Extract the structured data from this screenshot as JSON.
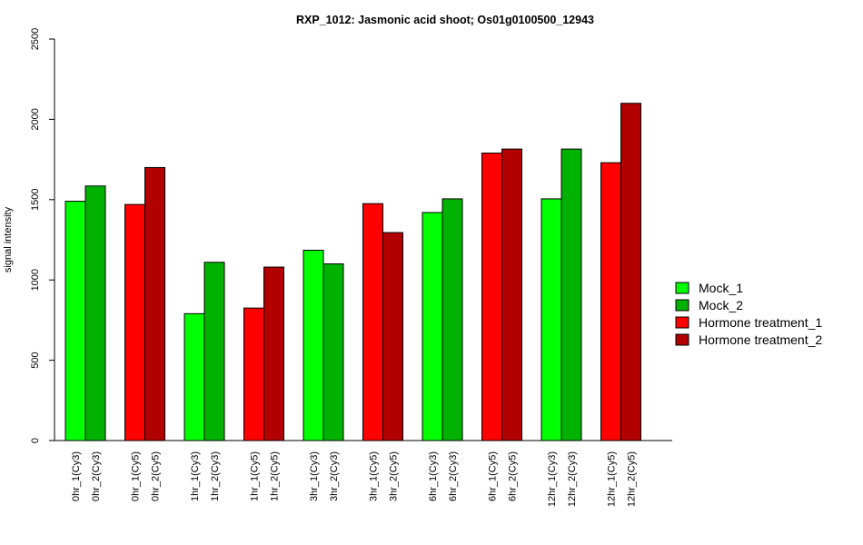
{
  "chart_data": {
    "type": "bar",
    "title": "RXP_1012: Jasmonic acid shoot; Os01g0100500_12943",
    "xlabel": "",
    "ylabel": "signal intensity",
    "ylim": [
      0,
      2500
    ],
    "yticks": [
      0,
      500,
      1000,
      1500,
      2000,
      2500
    ],
    "grid": false,
    "legend_position": "right",
    "groups": [
      "0hr_Cy3",
      "0hr_Cy5",
      "1hr_Cy3",
      "1hr_Cy5",
      "3hr_Cy3",
      "3hr_Cy5",
      "6hr_Cy3",
      "6hr_Cy5",
      "12hr_Cy3",
      "12hr_Cy5"
    ],
    "categories": [
      "0hr_1(Cy3)",
      "0hr_2(Cy3)",
      "0hr_1(Cy5)",
      "0hr_2(Cy5)",
      "1hr_1(Cy3)",
      "1hr_2(Cy3)",
      "1hr_1(Cy5)",
      "1hr_2(Cy5)",
      "3hr_1(Cy3)",
      "3hr_2(Cy3)",
      "3hr_1(Cy5)",
      "3hr_2(Cy5)",
      "6hr_1(Cy3)",
      "6hr_2(Cy3)",
      "6hr_1(Cy5)",
      "6hr_2(Cy5)",
      "12hr_1(Cy3)",
      "12hr_2(Cy3)",
      "12hr_1(Cy5)",
      "12hr_2(Cy5)"
    ],
    "values": [
      1490,
      1585,
      1470,
      1700,
      790,
      1110,
      825,
      1080,
      1185,
      1100,
      1475,
      1295,
      1420,
      1505,
      1790,
      1815,
      1505,
      1815,
      1730,
      2100
    ],
    "bar_series": [
      "Mock_1",
      "Mock_2",
      "Hormone treatment_1",
      "Hormone treatment_2",
      "Mock_1",
      "Mock_2",
      "Hormone treatment_1",
      "Hormone treatment_2",
      "Mock_1",
      "Mock_2",
      "Hormone treatment_1",
      "Hormone treatment_2",
      "Mock_1",
      "Mock_2",
      "Hormone treatment_1",
      "Hormone treatment_2",
      "Mock_1",
      "Mock_2",
      "Hormone treatment_1",
      "Hormone treatment_2"
    ],
    "series": [
      {
        "name": "Mock_1",
        "color": "#00ff00"
      },
      {
        "name": "Mock_2",
        "color": "#00b200"
      },
      {
        "name": "Hormone treatment_1",
        "color": "#ff0000"
      },
      {
        "name": "Hormone treatment_2",
        "color": "#b20000"
      }
    ]
  }
}
